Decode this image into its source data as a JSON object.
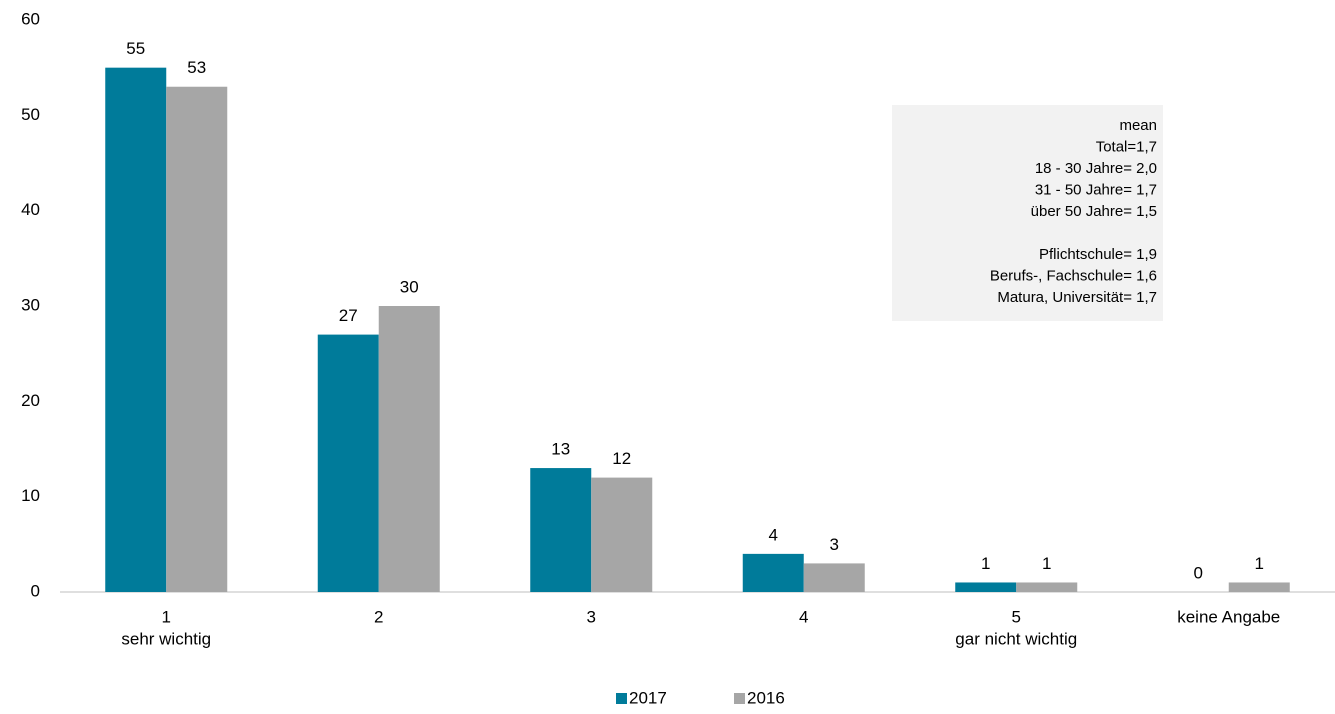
{
  "chart_data": {
    "type": "bar",
    "categories": [
      "1",
      "2",
      "3",
      "4",
      "5",
      "keine Angabe"
    ],
    "category_sublabels": [
      "sehr wichtig",
      null,
      null,
      null,
      "gar nicht wichtig",
      null
    ],
    "series": [
      {
        "name": "2017",
        "color": "#007b9a",
        "values": [
          55,
          27,
          13,
          4,
          1,
          0
        ]
      },
      {
        "name": "2016",
        "color": "#a6a6a6",
        "values": [
          53,
          30,
          12,
          3,
          1,
          1
        ]
      }
    ],
    "ylim": [
      0,
      60
    ],
    "yticks": [
      0,
      10,
      20,
      30,
      40,
      50,
      60
    ],
    "grid": false,
    "legend": "bottom",
    "annotation": {
      "blocks": [
        [
          "mean",
          "Total=1,7",
          "18 - 30 Jahre= 2,0",
          "31 - 50 Jahre= 1,7",
          "über 50 Jahre= 1,5"
        ],
        [
          "Pflichtschule= 1,9",
          "Berufs-, Fachschule= 1,6",
          "Matura, Universität= 1,7"
        ]
      ]
    }
  }
}
